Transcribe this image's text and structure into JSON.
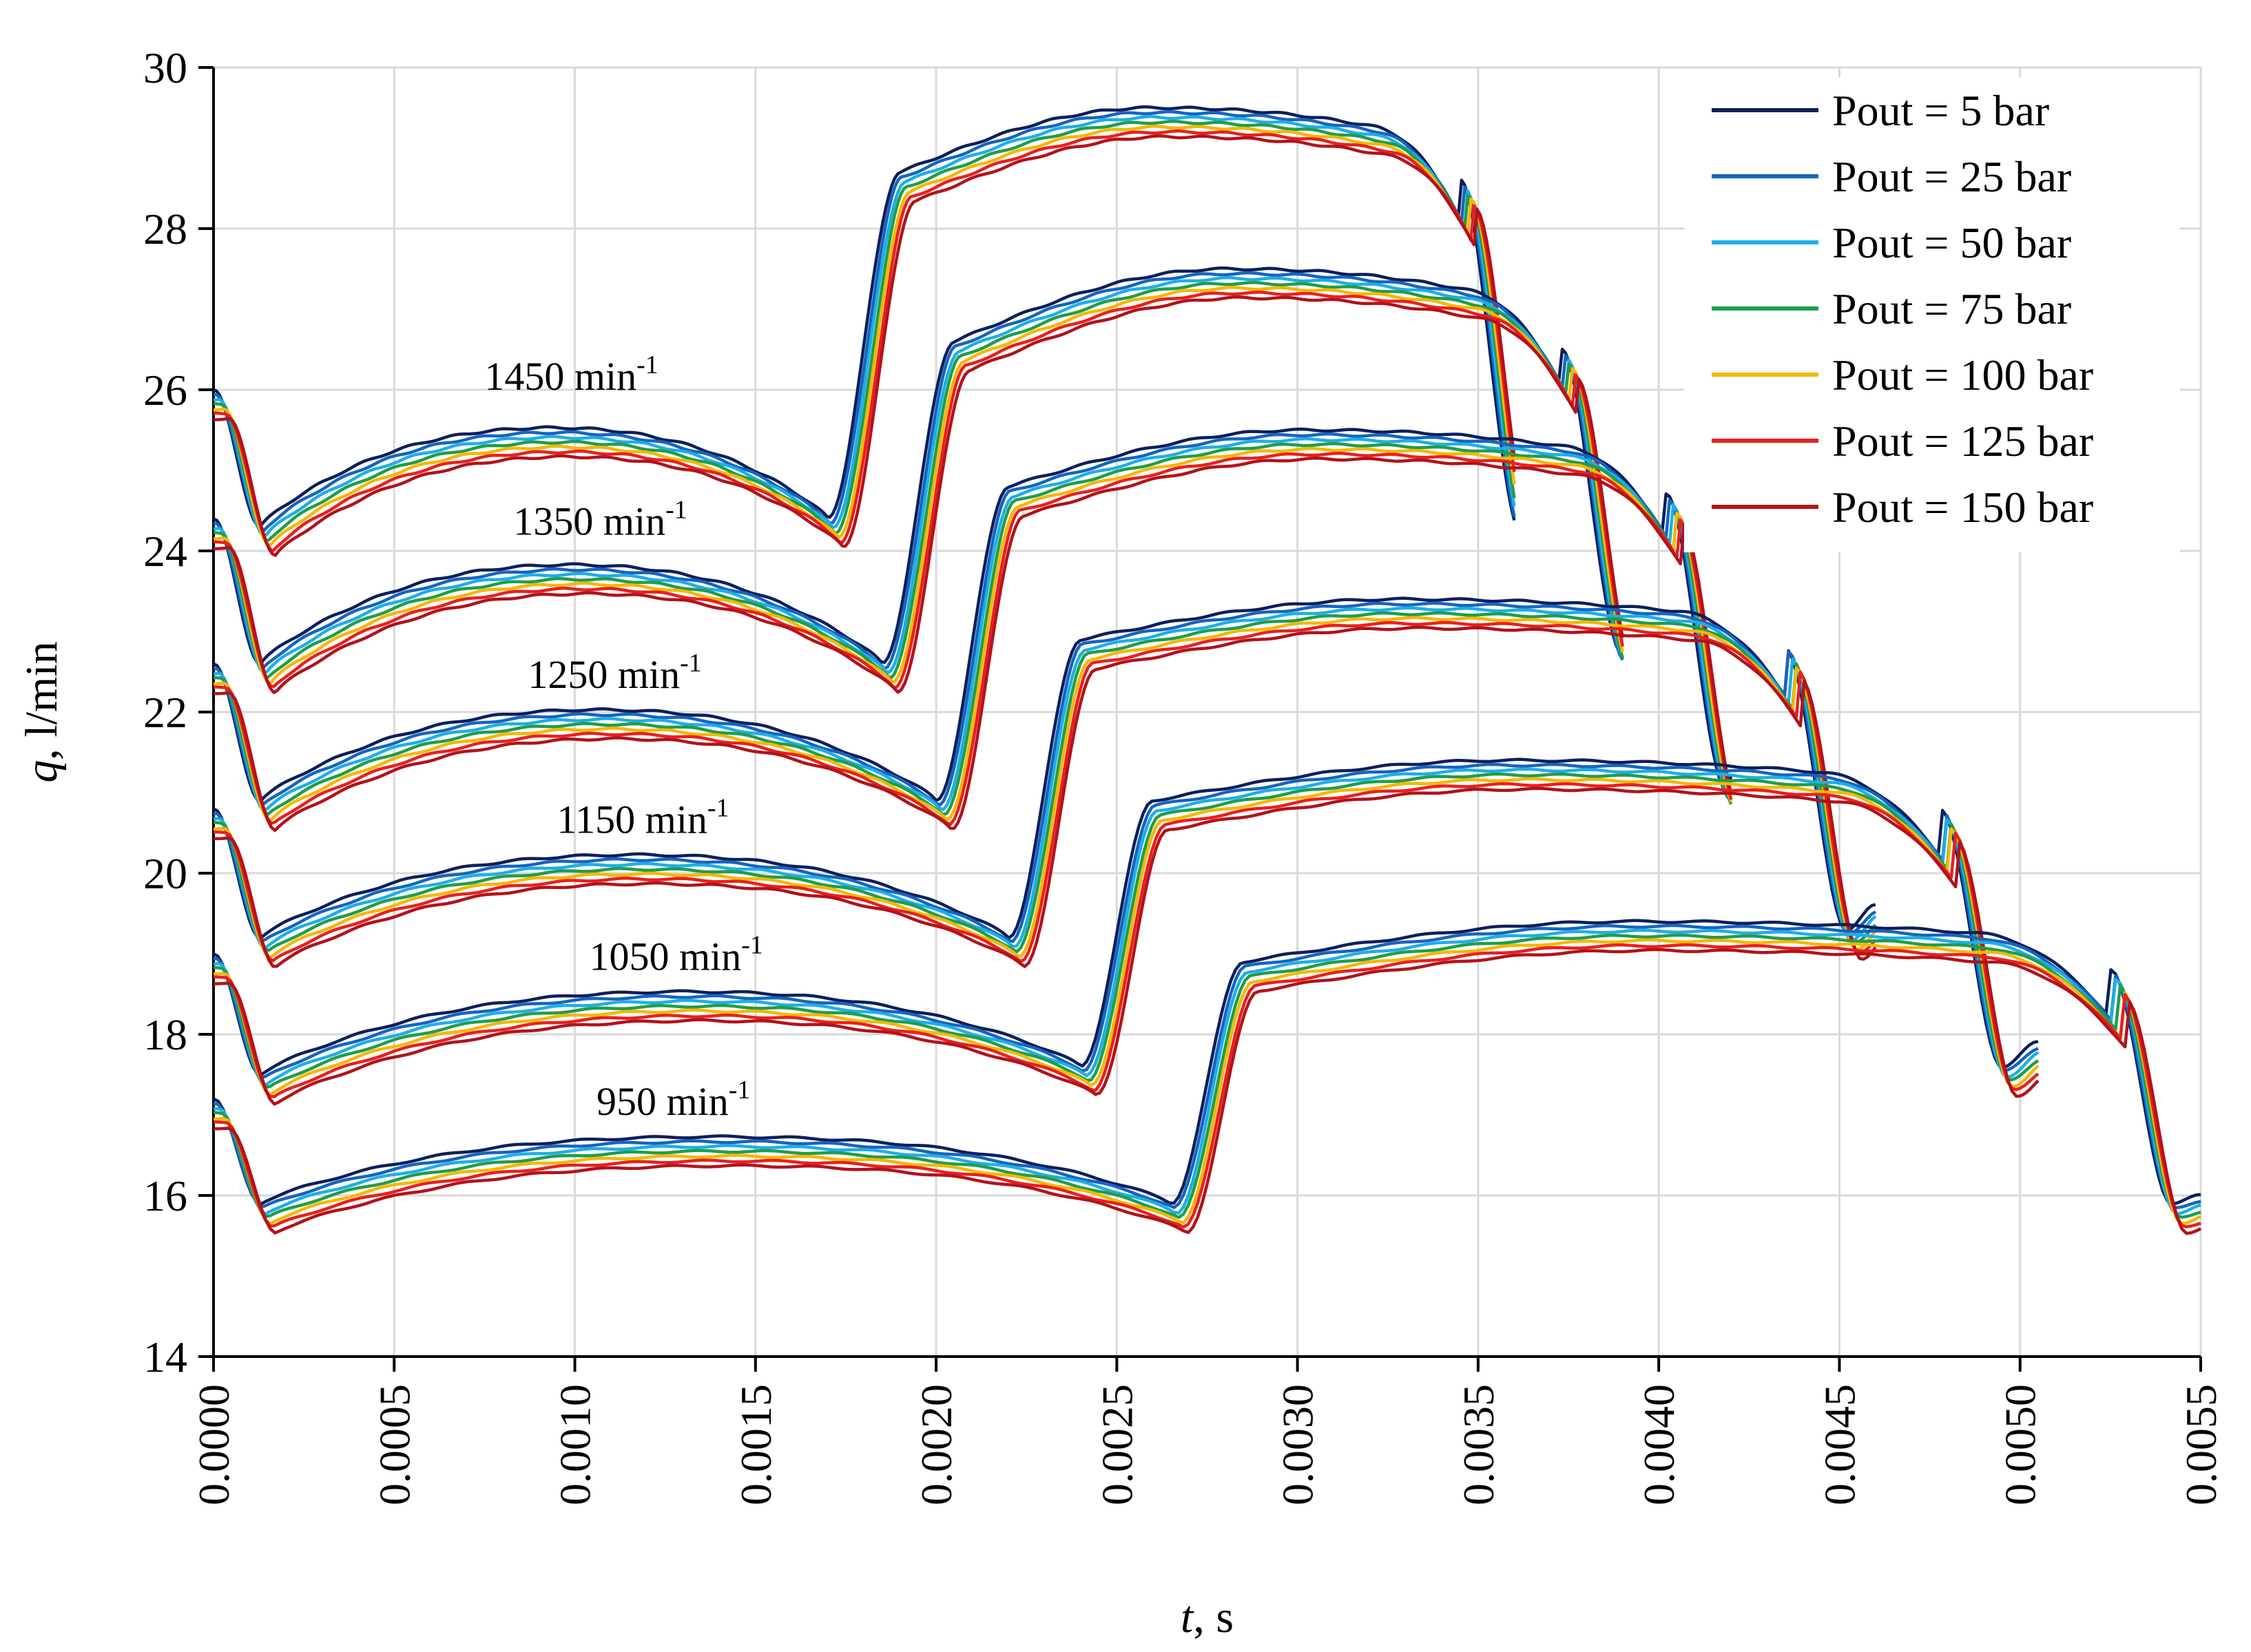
{
  "chart_data": {
    "type": "line",
    "title": "",
    "xlabel": {
      "var": "t",
      "rest": ", s"
    },
    "ylabel": {
      "var": "q",
      "rest": ", l/min"
    },
    "xlim": [
      0,
      0.0055
    ],
    "ylim": [
      14,
      30
    ],
    "x_ticks": [
      "0.0000",
      "0.0005",
      "0.0010",
      "0.0015",
      "0.0020",
      "0.0025",
      "0.0030",
      "0.0035",
      "0.0040",
      "0.0045",
      "0.0050",
      "0.0055"
    ],
    "y_ticks": [
      "14",
      "16",
      "18",
      "20",
      "22",
      "24",
      "26",
      "28",
      "30"
    ],
    "grid": true,
    "legend_position": "top-right",
    "series": [
      {
        "name": "Pout = 5 bar",
        "color": "#0d1f5c",
        "offset": 0.0
      },
      {
        "name": "Pout = 25 bar",
        "color": "#1565c0",
        "offset": -0.06
      },
      {
        "name": "Pout = 50 bar",
        "color": "#1eaee8",
        "offset": -0.12
      },
      {
        "name": "Pout = 75 bar",
        "color": "#1e9e4a",
        "offset": -0.18
      },
      {
        "name": "Pout = 100 bar",
        "color": "#f5b800",
        "offset": -0.24
      },
      {
        "name": "Pout = 125 bar",
        "color": "#e8201e",
        "offset": -0.3
      },
      {
        "name": "Pout = 150 bar",
        "color": "#b3121a",
        "offset": -0.36
      }
    ],
    "speed_curves": [
      {
        "speed": "1450",
        "period": 0.0036,
        "start": 26.0,
        "dip": 24.3,
        "hump": 25.6,
        "drop": 24.4,
        "rise_at": 0.0017,
        "high": 28.7,
        "peak": 29.5,
        "fall_at": 0.00345,
        "low": 24.2,
        "end": 24.4
      },
      {
        "speed": "1350",
        "period": 0.0039,
        "start": 24.4,
        "dip": 22.6,
        "hump": 23.9,
        "drop": 22.6,
        "rise_at": 0.00185,
        "high": 26.6,
        "peak": 27.5,
        "fall_at": 0.00373,
        "low": 22.7,
        "end": 22.9
      },
      {
        "speed": "1250",
        "period": 0.0042,
        "start": 22.6,
        "dip": 20.9,
        "hump": 22.1,
        "drop": 20.9,
        "rise_at": 0.002,
        "high": 24.8,
        "peak": 25.5,
        "fall_at": 0.00402,
        "low": 21.0,
        "end": 21.2
      },
      {
        "speed": "1150",
        "period": 0.0046,
        "start": 20.8,
        "dip": 19.2,
        "hump": 20.3,
        "drop": 19.2,
        "rise_at": 0.0022,
        "high": 22.9,
        "peak": 23.4,
        "fall_at": 0.00435,
        "low": 19.3,
        "end": 19.6
      },
      {
        "speed": "1050",
        "period": 0.00505,
        "start": 19.0,
        "dip": 17.5,
        "hump": 18.6,
        "drop": 17.6,
        "rise_at": 0.0024,
        "high": 20.9,
        "peak": 21.4,
        "fall_at": 0.00478,
        "low": 17.6,
        "end": 17.9
      },
      {
        "speed": "950",
        "period": 0.0055,
        "start": 17.2,
        "dip": 15.9,
        "hump": 16.8,
        "drop": 15.9,
        "rise_at": 0.00265,
        "high": 18.9,
        "peak": 19.4,
        "fall_at": 0.00525,
        "low": 15.9,
        "end": 16.0
      }
    ],
    "annotations": [
      {
        "base": "1450 min",
        "sup": "-1",
        "x": 0.00075,
        "y": 26.0
      },
      {
        "base": "1350 min",
        "sup": "-1",
        "x": 0.00083,
        "y": 24.2
      },
      {
        "base": "1250 min",
        "sup": "-1",
        "x": 0.00087,
        "y": 22.3
      },
      {
        "base": "1150 min",
        "sup": "-1",
        "x": 0.00095,
        "y": 20.5
      },
      {
        "base": "1050 min",
        "sup": "-1",
        "x": 0.00104,
        "y": 18.8
      },
      {
        "base": "950 min",
        "sup": "-1",
        "x": 0.00106,
        "y": 17.0
      }
    ]
  }
}
